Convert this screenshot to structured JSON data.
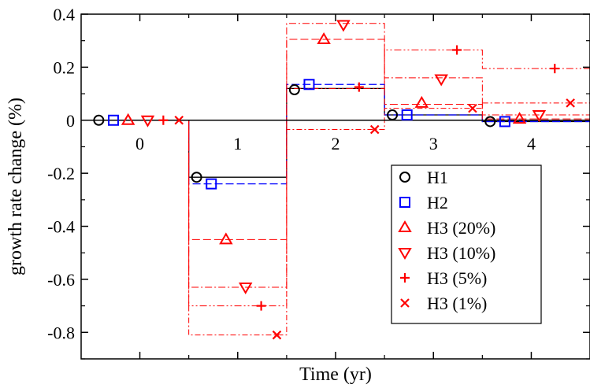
{
  "chart_data": {
    "type": "scatter",
    "title": "",
    "xlabel": "Time (yr)",
    "ylabel": "growth rate change (%)",
    "xlim": [
      -0.6,
      4.6
    ],
    "ylim": [
      -0.9,
      0.4
    ],
    "xticks": [
      "0",
      "1",
      "2",
      "3",
      "4"
    ],
    "yticks": [
      "0.4",
      "0.2",
      "0",
      "-0.2",
      "-0.4",
      "-0.6",
      "-0.8"
    ],
    "legend_position": "lower-right",
    "series": [
      {
        "name": "H1",
        "marker": "circle",
        "color": "#000000",
        "line": "solid",
        "x": [
          -0.42,
          0.58,
          1.58,
          2.58,
          3.58
        ],
        "y": [
          0.0,
          -0.215,
          0.115,
          0.02,
          -0.005
        ],
        "steps": [
          -0.5,
          0.5,
          1.5,
          2.5,
          3.5,
          4.6
        ],
        "step_values": [
          0.0,
          -0.215,
          0.12,
          0.02,
          -0.005
        ]
      },
      {
        "name": "H2",
        "marker": "square",
        "color": "#0000ff",
        "line": "dashed",
        "x": [
          -0.27,
          0.73,
          1.73,
          2.73,
          3.73
        ],
        "y": [
          0.0,
          -0.24,
          0.135,
          0.02,
          -0.005
        ],
        "steps": [
          -0.5,
          0.5,
          1.5,
          2.5,
          3.5,
          4.6
        ],
        "step_values": [
          0.0,
          -0.24,
          0.135,
          0.02,
          -0.005
        ]
      },
      {
        "name": "H3 (20%)",
        "marker": "triangle-up",
        "color": "#ff0000",
        "line": "dashed",
        "x": [
          -0.12,
          0.88,
          1.88,
          2.88,
          3.88
        ],
        "y": [
          0.0,
          -0.45,
          0.305,
          0.065,
          0.005
        ],
        "steps": [
          -0.5,
          0.5,
          1.5,
          2.5,
          3.5,
          4.6
        ],
        "step_values": [
          0.0,
          -0.45,
          0.305,
          0.06,
          0.005
        ]
      },
      {
        "name": "H3 (10%)",
        "marker": "triangle-down",
        "color": "#ff0000",
        "line": "dashdot",
        "x": [
          0.08,
          1.08,
          2.08,
          3.08,
          4.08
        ],
        "y": [
          0.0,
          -0.63,
          0.36,
          0.155,
          0.02
        ],
        "steps": [
          -0.5,
          0.5,
          1.5,
          2.5,
          3.5,
          4.6
        ],
        "step_values": [
          0.0,
          -0.63,
          0.365,
          0.16,
          0.02
        ]
      },
      {
        "name": "H3 (5%)",
        "marker": "plus",
        "color": "#ff0000",
        "line": "dashdotdot",
        "x": [
          0.24,
          1.24,
          2.24,
          3.24,
          4.24
        ],
        "y": [
          0.0,
          -0.7,
          0.125,
          0.265,
          0.195
        ],
        "steps": [
          -0.5,
          0.5,
          1.5,
          2.5,
          3.5,
          4.6
        ],
        "step_values": [
          0.0,
          -0.7,
          0.12,
          0.265,
          0.195
        ]
      },
      {
        "name": "H3 (1%)",
        "marker": "x",
        "color": "#ff0000",
        "line": "dashdot2",
        "x": [
          0.4,
          1.4,
          2.4,
          3.4,
          4.4
        ],
        "y": [
          0.0,
          -0.81,
          -0.035,
          0.045,
          0.065
        ],
        "steps": [
          -0.5,
          0.5,
          1.5,
          2.5,
          3.5,
          4.6
        ],
        "step_values": [
          0.0,
          -0.81,
          -0.035,
          0.045,
          0.065
        ]
      }
    ]
  }
}
